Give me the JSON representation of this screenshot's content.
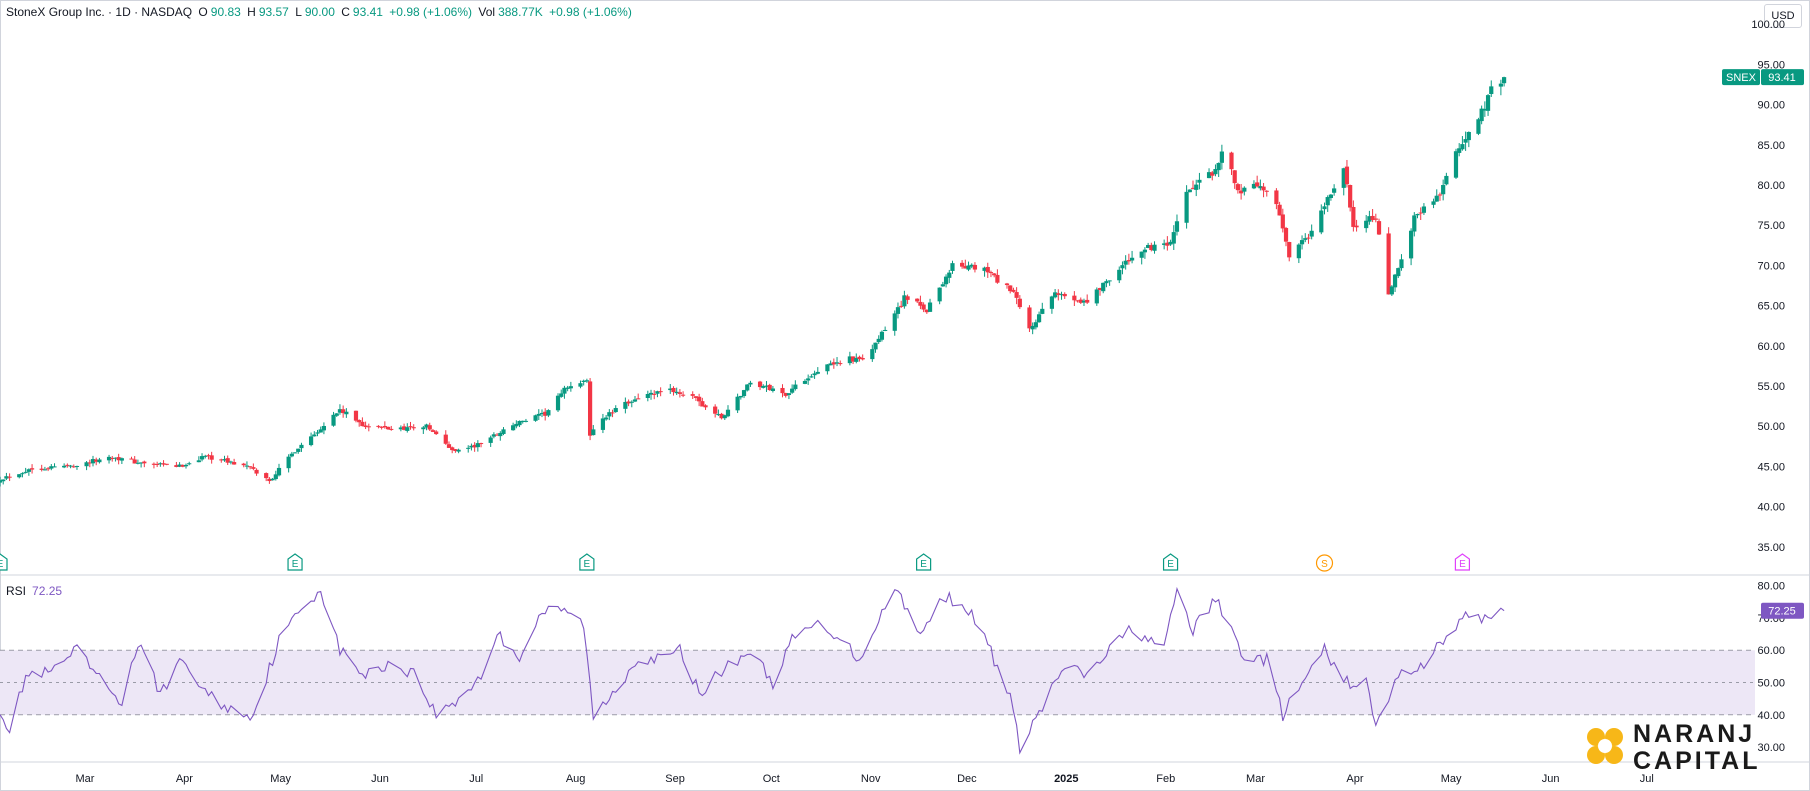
{
  "header": {
    "symbol_name": "StoneX Group Inc. · 1D · NASDAQ",
    "open_label": "O",
    "open": "90.83",
    "high_label": "H",
    "high": "93.57",
    "low_label": "L",
    "low": "90.00",
    "close_label": "C",
    "close": "93.41",
    "change": "+0.98 (+1.06%)",
    "vol_label": "Vol",
    "volume": "388.77K",
    "vol_change": "+0.98 (+1.06%)"
  },
  "currency": "USD",
  "colors": {
    "up": "#089981",
    "down": "#f23645",
    "rsi": "#7e57c2",
    "rsi_band": "#ede7f6",
    "grid": "#d1d4dc"
  },
  "last_price": {
    "ticker": "SNEX",
    "value": "93.41"
  },
  "rsi_indicator": {
    "label": "RSI",
    "value": "72.25"
  },
  "events": [
    {
      "icon": "earnings-icon",
      "glyph": "E",
      "date": "2024-02-06",
      "color": "#089981"
    },
    {
      "icon": "earnings-icon",
      "glyph": "E",
      "date": "2024-05-08",
      "color": "#089981"
    },
    {
      "icon": "earnings-icon",
      "glyph": "E",
      "date": "2024-08-07",
      "color": "#089981"
    },
    {
      "icon": "earnings-icon",
      "glyph": "E",
      "date": "2024-11-20",
      "color": "#089981"
    },
    {
      "icon": "earnings-icon",
      "glyph": "E",
      "date": "2025-02-05",
      "color": "#089981"
    },
    {
      "icon": "split-icon",
      "glyph": "S",
      "date": "2025-03-25",
      "color": "#ff9800"
    },
    {
      "icon": "earnings-icon",
      "glyph": "E",
      "date": "2025-05-07",
      "color": "#e040fb"
    }
  ],
  "branding": {
    "line1": "NARANJ",
    "line2": "CAPITAL"
  },
  "chart_data": [
    {
      "type": "candlestick",
      "title": "StoneX Group Inc. · 1D · NASDAQ",
      "xlabel": "",
      "ylabel": "USD",
      "x_tick_labels": [
        "Mar",
        "Apr",
        "May",
        "Jun",
        "Jul",
        "Aug",
        "Sep",
        "Oct",
        "Nov",
        "Dec",
        "2025",
        "Feb",
        "Mar",
        "Apr",
        "May",
        "Jun",
        "Jul"
      ],
      "y_tick_labels": [
        "35.00",
        "40.00",
        "45.00",
        "50.00",
        "55.00",
        "60.00",
        "65.00",
        "70.00",
        "75.00",
        "80.00",
        "85.00",
        "90.00",
        "95.00",
        "100.00"
      ],
      "ylim": [
        31.5,
        103
      ],
      "xlim": [
        "2024-02-06",
        "2025-07-31"
      ],
      "grid": false,
      "legend": "none",
      "series": [
        {
          "name": "SNEX",
          "anchors_close": [
            [
              "2024-02-06",
              43.5
            ],
            [
              "2024-02-16",
              44.7
            ],
            [
              "2024-03-01",
              45.2
            ],
            [
              "2024-03-12",
              46.2
            ],
            [
              "2024-03-22",
              45.3
            ],
            [
              "2024-04-02",
              45.0
            ],
            [
              "2024-04-10",
              46.3
            ],
            [
              "2024-04-23",
              45.0
            ],
            [
              "2024-04-30",
              43.2
            ],
            [
              "2024-05-08",
              47.0
            ],
            [
              "2024-05-15",
              49.5
            ],
            [
              "2024-05-22",
              52.0
            ],
            [
              "2024-05-30",
              50.0
            ],
            [
              "2024-06-07",
              49.7
            ],
            [
              "2024-06-18",
              50.0
            ],
            [
              "2024-06-26",
              47.0
            ],
            [
              "2024-07-03",
              47.5
            ],
            [
              "2024-07-15",
              50.2
            ],
            [
              "2024-07-25",
              51.5
            ],
            [
              "2024-08-01",
              55.0
            ],
            [
              "2024-08-07",
              55.5
            ],
            [
              "2024-08-08",
              49.0
            ],
            [
              "2024-08-12",
              51.0
            ],
            [
              "2024-08-22",
              53.5
            ],
            [
              "2024-09-03",
              54.5
            ],
            [
              "2024-09-09",
              53.5
            ],
            [
              "2024-09-18",
              51.0
            ],
            [
              "2024-09-27",
              55.5
            ],
            [
              "2024-10-08",
              54.0
            ],
            [
              "2024-10-17",
              56.8
            ],
            [
              "2024-10-28",
              58.5
            ],
            [
              "2024-11-01",
              58.0
            ],
            [
              "2024-11-08",
              62.0
            ],
            [
              "2024-11-14",
              66.0
            ],
            [
              "2024-11-21",
              64.5
            ],
            [
              "2024-11-29",
              70.0
            ],
            [
              "2024-12-09",
              69.5
            ],
            [
              "2024-12-18",
              66.5
            ],
            [
              "2024-12-23",
              62.0
            ],
            [
              "2024-12-31",
              66.5
            ],
            [
              "2025-01-10",
              65.5
            ],
            [
              "2025-01-17",
              68.5
            ],
            [
              "2025-01-27",
              72.0
            ],
            [
              "2025-02-05",
              72.5
            ],
            [
              "2025-02-10",
              79.0
            ],
            [
              "2025-02-18",
              81.5
            ],
            [
              "2025-02-21",
              84.0
            ],
            [
              "2025-02-27",
              79.0
            ],
            [
              "2025-03-04",
              80.0
            ],
            [
              "2025-03-10",
              77.5
            ],
            [
              "2025-03-14",
              71.0
            ],
            [
              "2025-03-21",
              74.0
            ],
            [
              "2025-03-27",
              79.0
            ],
            [
              "2025-03-31",
              82.0
            ],
            [
              "2025-04-03",
              75.0
            ],
            [
              "2025-04-10",
              76.0
            ],
            [
              "2025-04-14",
              66.0
            ],
            [
              "2025-04-22",
              76.0
            ],
            [
              "2025-04-30",
              79.0
            ],
            [
              "2025-05-05",
              84.0
            ],
            [
              "2025-05-12",
              88.0
            ],
            [
              "2025-05-16",
              92.0
            ],
            [
              "2025-05-20",
              93.41
            ]
          ]
        }
      ]
    },
    {
      "type": "line",
      "title": "RSI",
      "xlabel": "",
      "ylabel": "",
      "y_tick_labels": [
        "30.00",
        "40.00",
        "50.00",
        "60.00",
        "70.00",
        "80.00"
      ],
      "ylim": [
        26,
        83
      ],
      "band": [
        40,
        60
      ],
      "midline": 50,
      "grid": false,
      "legend": "none",
      "series": [
        {
          "name": "RSI",
          "anchors": [
            [
              "2024-02-06",
              42
            ],
            [
              "2024-02-09",
              35
            ],
            [
              "2024-02-14",
              52
            ],
            [
              "2024-02-22",
              53
            ],
            [
              "2024-03-01",
              60
            ],
            [
              "2024-03-08",
              51
            ],
            [
              "2024-03-15",
              44
            ],
            [
              "2024-03-20",
              62
            ],
            [
              "2024-03-27",
              47
            ],
            [
              "2024-04-03",
              57
            ],
            [
              "2024-04-10",
              47
            ],
            [
              "2024-04-17",
              42
            ],
            [
              "2024-04-25",
              40
            ],
            [
              "2024-05-03",
              63
            ],
            [
              "2024-05-10",
              73
            ],
            [
              "2024-05-16",
              79
            ],
            [
              "2024-05-22",
              60
            ],
            [
              "2024-05-30",
              52
            ],
            [
              "2024-06-06",
              56
            ],
            [
              "2024-06-14",
              53
            ],
            [
              "2024-06-21",
              40
            ],
            [
              "2024-06-27",
              44
            ],
            [
              "2024-07-05",
              52
            ],
            [
              "2024-07-10",
              65
            ],
            [
              "2024-07-17",
              58
            ],
            [
              "2024-07-24",
              72
            ],
            [
              "2024-08-01",
              72
            ],
            [
              "2024-08-06",
              68
            ],
            [
              "2024-08-09",
              39
            ],
            [
              "2024-08-16",
              48
            ],
            [
              "2024-08-23",
              58
            ],
            [
              "2024-08-30",
              57
            ],
            [
              "2024-09-05",
              60
            ],
            [
              "2024-09-11",
              47
            ],
            [
              "2024-09-20",
              55
            ],
            [
              "2024-09-27",
              60
            ],
            [
              "2024-10-04",
              50
            ],
            [
              "2024-10-10",
              63
            ],
            [
              "2024-10-17",
              68
            ],
            [
              "2024-10-24",
              65
            ],
            [
              "2024-10-31",
              57
            ],
            [
              "2024-11-07",
              72
            ],
            [
              "2024-11-12",
              79
            ],
            [
              "2024-11-19",
              64
            ],
            [
              "2024-11-26",
              77
            ],
            [
              "2024-12-03",
              74
            ],
            [
              "2024-12-10",
              62
            ],
            [
              "2024-12-17",
              45
            ],
            [
              "2024-12-20",
              30
            ],
            [
              "2025-01-03",
              55
            ],
            [
              "2025-01-10",
              52
            ],
            [
              "2025-01-17",
              60
            ],
            [
              "2025-01-24",
              67
            ],
            [
              "2025-02-03",
              60
            ],
            [
              "2025-02-07",
              79
            ],
            [
              "2025-02-12",
              66
            ],
            [
              "2025-02-19",
              76
            ],
            [
              "2025-02-28",
              58
            ],
            [
              "2025-03-07",
              57
            ],
            [
              "2025-03-12",
              40
            ],
            [
              "2025-03-19",
              51
            ],
            [
              "2025-03-25",
              60
            ],
            [
              "2025-03-31",
              50
            ],
            [
              "2025-04-07",
              50
            ],
            [
              "2025-04-10",
              36
            ],
            [
              "2025-04-17",
              52
            ],
            [
              "2025-04-25",
              56
            ],
            [
              "2025-05-01",
              63
            ],
            [
              "2025-05-07",
              70
            ],
            [
              "2025-05-13",
              70
            ],
            [
              "2025-05-20",
              72.25
            ]
          ]
        }
      ]
    }
  ]
}
